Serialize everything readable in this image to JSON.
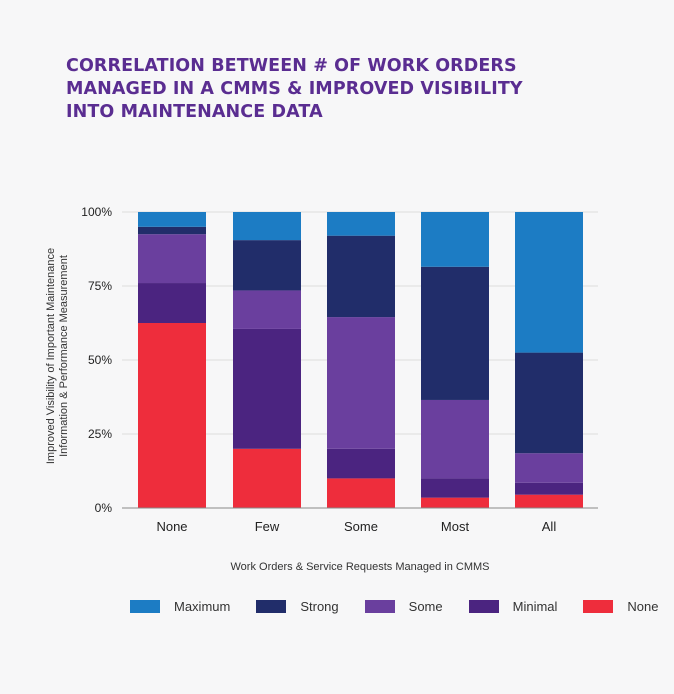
{
  "title_lines": [
    "CORRELATION BETWEEN # OF WORK ORDERS",
    "MANAGED IN A CMMS & IMPROVED VISIBILITY",
    "INTO MAINTENANCE DATA"
  ],
  "chart_data": {
    "type": "bar",
    "stacked": true,
    "title": "CORRELATION BETWEEN # OF WORK ORDERS MANAGED IN A CMMS & IMPROVED VISIBILITY INTO MAINTENANCE DATA",
    "categories": [
      "None",
      "Few",
      "Some",
      "Most",
      "All"
    ],
    "xlabel": "Work Orders & Service Requests Managed in CMMS",
    "ylabel_lines": [
      "Improved Visibility of Important Maintenance",
      "Information & Performance Measurement"
    ],
    "ylim": [
      0,
      100
    ],
    "yticks": [
      "0%",
      "25%",
      "50%",
      "75%",
      "100%"
    ],
    "ytick_values": [
      0,
      25,
      50,
      75,
      100
    ],
    "series": [
      {
        "name": "None",
        "color": "#ee2d3c",
        "values": [
          62.5,
          20,
          10,
          3.5,
          4.5
        ]
      },
      {
        "name": "Minimal",
        "color": "#4b2480",
        "values": [
          13.5,
          40.5,
          10,
          6.5,
          4
        ]
      },
      {
        "name": "Some",
        "color": "#6a3f9e",
        "values": [
          16.5,
          13,
          44.5,
          26.5,
          10
        ]
      },
      {
        "name": "Strong",
        "color": "#212d6a",
        "values": [
          2.5,
          17,
          27.5,
          45,
          34
        ]
      },
      {
        "name": "Maximum",
        "color": "#1c7cc4",
        "values": [
          5,
          9.5,
          8,
          18.5,
          47.5
        ]
      }
    ],
    "legend_order": [
      "Maximum",
      "Strong",
      "Some",
      "Minimal",
      "None"
    ],
    "legend_position": "bottom"
  }
}
